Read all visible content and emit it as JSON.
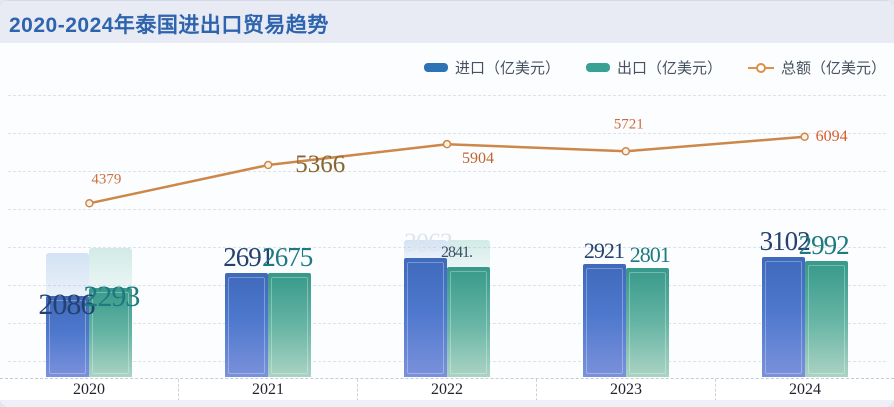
{
  "title": "2020-2024年泰国进出口贸易趋势",
  "legend": {
    "items": [
      {
        "label": "进口（亿美元）",
        "color": "#2e74b5",
        "marker": "bar"
      },
      {
        "label": "出口（亿美元）",
        "color": "#38a193",
        "marker": "bar"
      },
      {
        "label": "总额（亿美元）",
        "color": "#df9048",
        "marker": "line-dot"
      }
    ]
  },
  "colors": {
    "title_bar_bg": "#e8eaf4",
    "title_text": "#2e64ad",
    "plot_bg": "#fcfdff",
    "gridline": "#dee2ed",
    "import_bar_top": "#3f69ba",
    "import_bar_bottom": "#7b91db",
    "export_bar_top": "#37998a",
    "export_bar_bottom": "#abd3c3",
    "import_label": "#24406e",
    "export_label": "#1e7a80",
    "total_line": "#cd8749",
    "axis_text": "#23232e"
  },
  "chart_data": {
    "type": "combo",
    "categories": [
      "2020",
      "2021",
      "2022",
      "2023",
      "2024"
    ],
    "series": [
      {
        "name": "进口（亿美元）",
        "type": "bar",
        "values": [
          2086,
          2691,
          3063,
          2921,
          3102
        ],
        "labels": [
          "2086",
          "2691",
          "3063",
          "2921",
          "3102"
        ],
        "color": "#2e74b5"
      },
      {
        "name": "出口（亿美元）",
        "type": "bar",
        "values": [
          2293,
          2675,
          2841,
          2801,
          2992
        ],
        "labels": [
          "2293",
          "2675",
          "2841.",
          "2801",
          "2992"
        ],
        "color": "#38a193"
      },
      {
        "name": "总额（亿美元）",
        "type": "line",
        "values": [
          4379,
          5366,
          5904,
          5721,
          6094
        ],
        "labels": [
          "4379",
          "5366",
          "5904",
          "5721",
          "6094"
        ],
        "color": "#cd8749"
      }
    ],
    "ylim": [
      0,
      7200
    ],
    "grid": "horizontal-dashed",
    "legend_position": "top-right",
    "x_axis_style": "boxed-band-with-dashed-separators"
  }
}
